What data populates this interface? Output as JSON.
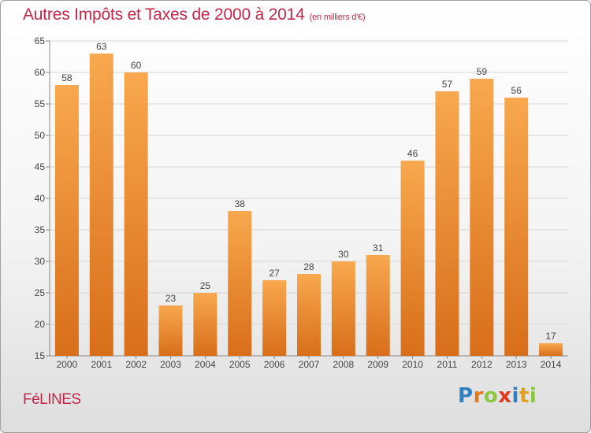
{
  "header": {
    "title": "Autres Impôts et Taxes de 2000 à 2014",
    "subtitle": "(en milliers d'€)"
  },
  "footer": {
    "commune": "FéLINES",
    "logo_letters": [
      {
        "char": "P",
        "color": "#2f7fc1"
      },
      {
        "char": "r",
        "color": "#e07a1e"
      },
      {
        "char": "o",
        "color": "#8dc63f"
      },
      {
        "char": "x",
        "color": "#e03a1e"
      },
      {
        "char": "i",
        "color": "#2f7fc1"
      },
      {
        "char": "t",
        "color": "#e0a01e"
      },
      {
        "char": "i",
        "color": "#8dc63f"
      }
    ]
  },
  "chart_data": {
    "type": "bar",
    "categories": [
      "2000",
      "2001",
      "2002",
      "2003",
      "2004",
      "2005",
      "2006",
      "2007",
      "2008",
      "2009",
      "2010",
      "2011",
      "2012",
      "2013",
      "2014"
    ],
    "values": [
      58,
      63,
      60,
      23,
      25,
      38,
      27,
      28,
      30,
      31,
      46,
      57,
      59,
      56,
      17
    ],
    "ylim": [
      15,
      65
    ],
    "yticks": [
      15,
      20,
      25,
      30,
      35,
      40,
      45,
      50,
      55,
      60,
      65
    ],
    "grid": true,
    "bar_color_light": "#f8a84e",
    "bar_color_dark": "#d86e1a",
    "title_color": "#c0284a"
  }
}
